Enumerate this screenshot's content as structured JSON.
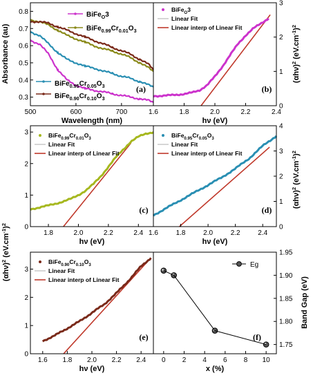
{
  "chart_data": [
    {
      "type": "line",
      "panel_label": "(a)",
      "xlabel": "Wavelength (nm)",
      "ylabel": "Absorbance (au)",
      "xlim": [
        500,
        770
      ],
      "ylim": [
        0.25,
        0.85
      ],
      "xticks": [
        "500",
        "600",
        "700"
      ],
      "yticks": [
        "0.3",
        "0.4",
        "0.5",
        "0.6",
        "0.7",
        "0.8"
      ],
      "series": [
        {
          "name": "BiFeO3",
          "color": "#cc33cc",
          "legend": [
            "BiFe",
            "O",
            "3",
            "",
            "",
            ""
          ],
          "x": [
            500,
            520,
            540,
            560,
            580,
            600,
            620,
            640,
            660,
            680,
            700,
            720,
            740,
            760,
            770
          ],
          "y": [
            0.63,
            0.61,
            0.55,
            0.46,
            0.4,
            0.37,
            0.35,
            0.34,
            0.33,
            0.32,
            0.31,
            0.3,
            0.29,
            0.28,
            0.27
          ]
        },
        {
          "name": "BiFe0.99Cr0.01O3",
          "color": "#8a8a1a",
          "legend": [
            "BiFe",
            "0.99",
            "Cr",
            "0.01",
            "O",
            "3"
          ],
          "x": [
            500,
            520,
            540,
            560,
            580,
            600,
            620,
            640,
            660,
            680,
            700,
            720,
            740,
            760,
            770
          ],
          "y": [
            0.75,
            0.74,
            0.72,
            0.69,
            0.66,
            0.64,
            0.62,
            0.6,
            0.58,
            0.57,
            0.55,
            0.53,
            0.5,
            0.47,
            0.45
          ]
        },
        {
          "name": "BiFe0.95Cr0.05O3",
          "color": "#2a8fb3",
          "legend": [
            "BiFe",
            "0.95",
            "Cr",
            "0.05",
            "O",
            "3"
          ],
          "x": [
            500,
            520,
            540,
            560,
            580,
            600,
            620,
            640,
            660,
            680,
            700,
            720,
            740,
            760,
            770
          ],
          "y": [
            0.68,
            0.66,
            0.61,
            0.56,
            0.52,
            0.5,
            0.48,
            0.47,
            0.45,
            0.44,
            0.42,
            0.41,
            0.39,
            0.37,
            0.36
          ]
        },
        {
          "name": "BiFe0.90Cr0.10O3",
          "color": "#7a2a1a",
          "legend": [
            "BiFe",
            "0.90",
            "Cr",
            "0.10",
            "O",
            "3"
          ],
          "x": [
            500,
            520,
            540,
            560,
            580,
            600,
            620,
            640,
            660,
            680,
            700,
            720,
            740,
            760,
            770
          ],
          "y": [
            0.74,
            0.74,
            0.73,
            0.71,
            0.69,
            0.67,
            0.65,
            0.63,
            0.61,
            0.59,
            0.57,
            0.55,
            0.52,
            0.49,
            0.46
          ]
        }
      ]
    },
    {
      "type": "line",
      "panel_label": "(b)",
      "xlabel": "hν (eV)",
      "ylabel": "(αhν)^2 (eV.cm^-1)^2",
      "xlim": [
        1.6,
        2.4
      ],
      "ylim": [
        0,
        3
      ],
      "xticks": [
        "1.6",
        "1.8",
        "2.0",
        "2.2",
        "2.4"
      ],
      "yticks": [
        "0",
        "1",
        "2",
        "3"
      ],
      "legend": [
        [
          "BiFe",
          "O",
          "3",
          "",
          "",
          ""
        ],
        "Linear Fit",
        "Linear interp of Linear Fit"
      ],
      "data": {
        "color": "#cc33cc",
        "x": [
          1.6,
          1.7,
          1.8,
          1.85,
          1.9,
          1.95,
          2.0,
          2.05,
          2.1,
          2.15,
          2.2,
          2.25,
          2.3,
          2.35
        ],
        "y": [
          0.28,
          0.3,
          0.34,
          0.38,
          0.45,
          0.6,
          0.85,
          1.15,
          1.48,
          1.8,
          2.05,
          2.25,
          2.4,
          2.55
        ]
      },
      "fit": {
        "x": [
          1.91,
          2.36
        ],
        "y": [
          0,
          2.65
        ]
      }
    },
    {
      "type": "line",
      "panel_label": "(c)",
      "xlabel": "hν (eV)",
      "ylabel": "",
      "xlim": [
        1.68,
        2.5
      ],
      "ylim": [
        0,
        3.2
      ],
      "xticks": [
        "1.8",
        "2.0",
        "2.2",
        "2.4"
      ],
      "yticks": [
        "0",
        "1",
        "2",
        "3"
      ],
      "legend": [
        [
          "BiFe",
          "0.99",
          "Cr",
          "0.01",
          "O",
          "3"
        ],
        "Linear Fit",
        "Linear interp of Linear Fit"
      ],
      "data": {
        "color": "#a6b81f",
        "x": [
          1.68,
          1.75,
          1.8,
          1.85,
          1.9,
          1.95,
          2.0,
          2.05,
          2.1,
          2.15,
          2.2,
          2.25,
          2.3,
          2.35,
          2.4,
          2.45,
          2.5
        ],
        "y": [
          0.55,
          0.62,
          0.67,
          0.73,
          0.8,
          0.88,
          1.0,
          1.15,
          1.35,
          1.6,
          1.9,
          2.2,
          2.45,
          2.7,
          2.85,
          2.95,
          3.0
        ]
      },
      "fit": {
        "x": [
          1.9,
          2.35
        ],
        "y": [
          0,
          2.65
        ]
      }
    },
    {
      "type": "line",
      "panel_label": "(d)",
      "xlabel": "hν (eV)",
      "ylabel": "(αhν)^2 (eV.cm^-1)^2",
      "xlim": [
        1.6,
        2.5
      ],
      "ylim": [
        0,
        4
      ],
      "xticks": [
        "1.6",
        "1.8",
        "2.0",
        "2.2",
        "2.4"
      ],
      "yticks": [
        "0",
        "1",
        "2",
        "3",
        "4"
      ],
      "legend": [
        [
          "BiFe",
          "0.95",
          "Cr",
          "0.05",
          "O",
          "3"
        ],
        "Linear Fit",
        "Linear interp of Linear Fit"
      ],
      "data": {
        "color": "#2a8fb3",
        "x": [
          1.6,
          1.7,
          1.8,
          1.9,
          2.0,
          2.1,
          2.2,
          2.3,
          2.4,
          2.5
        ],
        "y": [
          0.45,
          0.75,
          1.05,
          1.35,
          1.65,
          1.95,
          2.3,
          2.7,
          3.2,
          3.6
        ]
      },
      "fit": {
        "x": [
          1.79,
          2.45
        ],
        "y": [
          0,
          3.15
        ]
      }
    },
    {
      "type": "line",
      "panel_label": "(e)",
      "xlabel": "hν (eV)",
      "ylabel": "",
      "xlim": [
        1.5,
        2.5
      ],
      "ylim": [
        0,
        3.6
      ],
      "xticks": [
        "1.6",
        "1.8",
        "2.0",
        "2.2",
        "2.4"
      ],
      "yticks": [
        "0",
        "1",
        "2",
        "3"
      ],
      "legend": [
        [
          "BiFe",
          "0.90",
          "Cr",
          "0.10",
          "O",
          "3"
        ],
        "Linear Fit",
        "Linear interp of Linear Fit"
      ],
      "data": {
        "color": "#7a2a1a",
        "x": [
          1.6,
          1.7,
          1.8,
          1.9,
          2.0,
          2.1,
          2.2,
          2.3,
          2.4,
          2.48
        ],
        "y": [
          0.45,
          0.65,
          0.9,
          1.15,
          1.45,
          1.75,
          2.15,
          2.6,
          3.1,
          3.4
        ]
      },
      "fit": {
        "x": [
          1.77,
          2.48
        ],
        "y": [
          0,
          3.4
        ]
      }
    },
    {
      "type": "scatter",
      "panel_label": "(f)",
      "xlabel": "x (%)",
      "ylabel": "Band Gap (eV)",
      "xlim": [
        -1,
        11
      ],
      "ylim": [
        1.73,
        1.95
      ],
      "xticks": [
        "0",
        "2",
        "4",
        "6",
        "8",
        "10"
      ],
      "yticks": [
        "1.75",
        "1.80",
        "1.85",
        "1.90",
        "1.95"
      ],
      "legend": [
        "Eg"
      ],
      "x": [
        0,
        1,
        5,
        10
      ],
      "y": [
        1.91,
        1.9,
        1.78,
        1.75
      ]
    }
  ]
}
